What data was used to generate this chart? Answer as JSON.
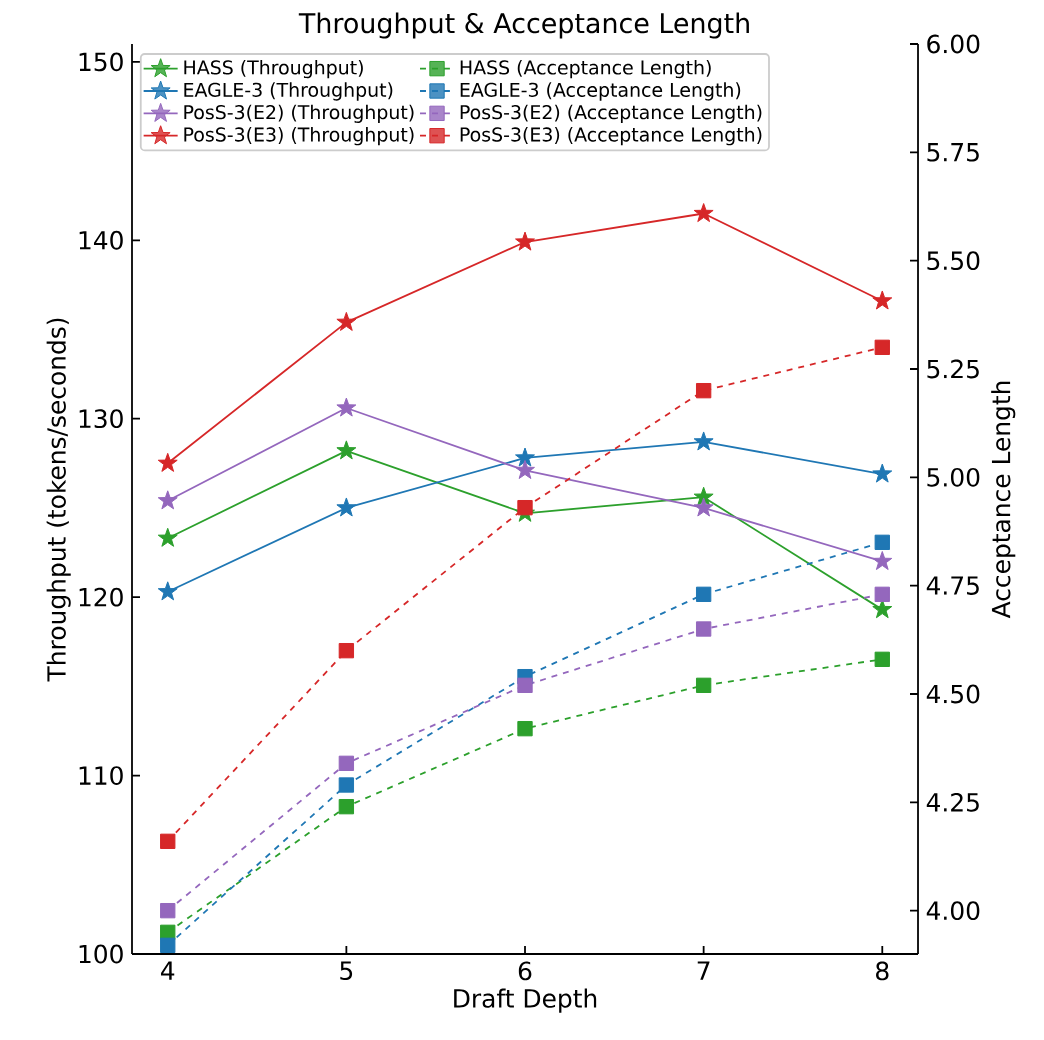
{
  "chart_data": {
    "type": "line",
    "title": "Throughput & Acceptance Length",
    "xlabel": "Draft Depth",
    "ylabel": "Throughput (tokens/seconds)",
    "y2label": "Acceptance Length",
    "x": [
      4,
      5,
      6,
      7,
      8
    ],
    "xlim": [
      3.8,
      8.2
    ],
    "xticks": [
      4,
      5,
      6,
      7,
      8
    ],
    "ylim": [
      100,
      151
    ],
    "yticks": [
      100,
      110,
      120,
      130,
      140,
      150
    ],
    "y2lim": [
      3.9,
      6.0
    ],
    "y2ticks": [
      {
        "value": 4.0,
        "label": "4.00"
      },
      {
        "value": 4.25,
        "label": "4.25"
      },
      {
        "value": 4.5,
        "label": "4.50"
      },
      {
        "value": 4.75,
        "label": "4.75"
      },
      {
        "value": 5.0,
        "label": "5.00"
      },
      {
        "value": 5.25,
        "label": "5.25"
      },
      {
        "value": 5.5,
        "label": "5.50"
      },
      {
        "value": 5.75,
        "label": "5.75"
      },
      {
        "value": 6.0,
        "label": "6.00"
      }
    ],
    "legend": "top left",
    "grid": false,
    "series": [
      {
        "name": "HASS (Throughput)",
        "color": "#2ca02c",
        "marker": "star",
        "line_style": "solid",
        "axis": "y",
        "values": [
          123.3,
          128.2,
          124.7,
          125.6,
          119.3
        ]
      },
      {
        "name": "EAGLE-3 (Throughput)",
        "color": "#1f77b4",
        "marker": "star",
        "line_style": "solid",
        "axis": "y",
        "values": [
          120.3,
          125.0,
          127.8,
          128.7,
          126.9
        ]
      },
      {
        "name": "PosS-3(E2) (Throughput)",
        "color": "#9467bd",
        "marker": "star",
        "line_style": "solid",
        "axis": "y",
        "values": [
          125.4,
          130.6,
          127.1,
          125.0,
          122.0
        ]
      },
      {
        "name": "PosS-3(E3) (Throughput)",
        "color": "#d62728",
        "marker": "star",
        "line_style": "solid",
        "axis": "y",
        "values": [
          127.5,
          135.4,
          139.9,
          141.5,
          136.6
        ]
      },
      {
        "name": "HASS (Acceptance Length)",
        "color": "#2ca02c",
        "marker": "square",
        "line_style": "dashed",
        "axis": "y2",
        "values": [
          3.95,
          4.24,
          4.42,
          4.52,
          4.58
        ]
      },
      {
        "name": "EAGLE-3 (Acceptance Length)",
        "color": "#1f77b4",
        "marker": "square",
        "line_style": "dashed",
        "axis": "y2",
        "values": [
          3.92,
          4.29,
          4.54,
          4.73,
          4.85
        ]
      },
      {
        "name": "PosS-3(E2) (Acceptance Length)",
        "color": "#9467bd",
        "marker": "square",
        "line_style": "dashed",
        "axis": "y2",
        "values": [
          4.0,
          4.34,
          4.52,
          4.65,
          4.73
        ]
      },
      {
        "name": "PosS-3(E3) (Acceptance Length)",
        "color": "#d62728",
        "marker": "square",
        "line_style": "dashed",
        "axis": "y2",
        "values": [
          4.16,
          4.6,
          4.93,
          5.2,
          5.3
        ]
      }
    ]
  }
}
